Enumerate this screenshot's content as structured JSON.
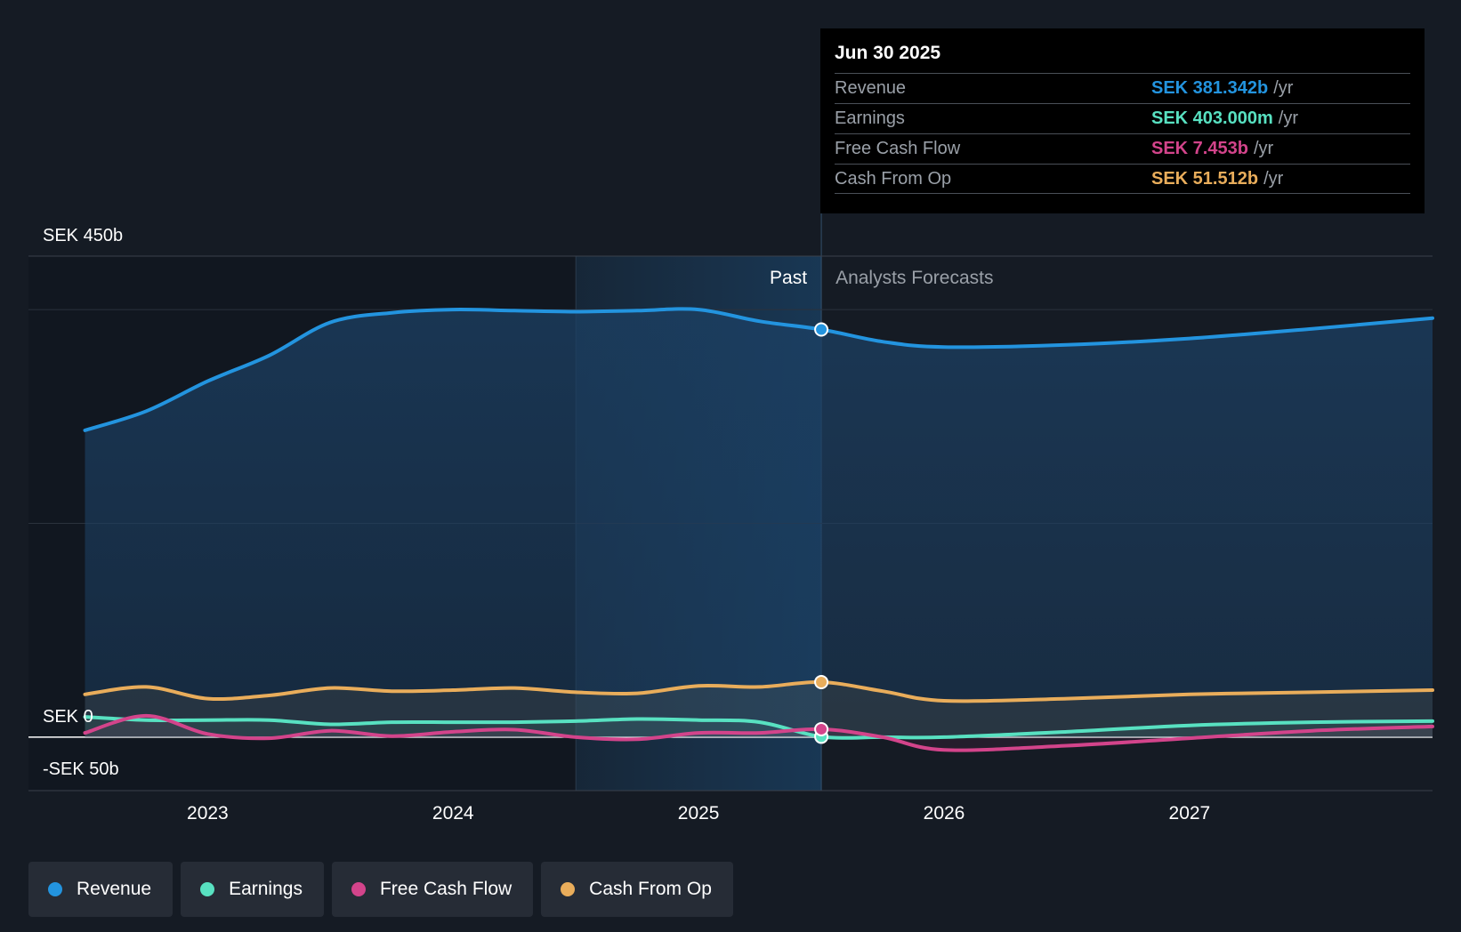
{
  "chart_data": {
    "type": "area",
    "x_unit": "year",
    "ylim": [
      -50,
      450
    ],
    "y_ticks": [
      {
        "value": 450,
        "label": "SEK 450b"
      },
      {
        "value": 0,
        "label": "SEK 0"
      },
      {
        "value": -50,
        "label": "-SEK 50b"
      }
    ],
    "x_ticks": [
      {
        "value": 2023,
        "label": "2023"
      },
      {
        "value": 2024,
        "label": "2024"
      },
      {
        "value": 2025,
        "label": "2025"
      },
      {
        "value": 2026,
        "label": "2026"
      },
      {
        "value": 2027,
        "label": "2027"
      }
    ],
    "xlim": [
      2022.27,
      2027.99
    ],
    "past_label": "Past",
    "forecast_label": "Analysts Forecasts",
    "past_start": 2024.5,
    "past_end": 2025.5,
    "grid": true,
    "legend_position": "bottom",
    "series": [
      {
        "name": "Revenue",
        "color": "#2394df",
        "points": [
          [
            2022.5,
            287
          ],
          [
            2022.75,
            305
          ],
          [
            2023.0,
            333
          ],
          [
            2023.25,
            357
          ],
          [
            2023.5,
            388
          ],
          [
            2023.75,
            397
          ],
          [
            2024.0,
            400
          ],
          [
            2024.25,
            399
          ],
          [
            2024.5,
            398
          ],
          [
            2024.75,
            399
          ],
          [
            2025.0,
            400
          ],
          [
            2025.25,
            389
          ],
          [
            2025.5,
            381.342
          ],
          [
            2025.75,
            370
          ],
          [
            2026.0,
            365
          ],
          [
            2026.5,
            367
          ],
          [
            2027.0,
            373
          ],
          [
            2027.5,
            382
          ],
          [
            2027.99,
            392
          ]
        ],
        "forecast": true
      },
      {
        "name": "Earnings",
        "color": "#58e1c1",
        "points": [
          [
            2022.5,
            19
          ],
          [
            2022.75,
            16
          ],
          [
            2023.0,
            16
          ],
          [
            2023.25,
            16
          ],
          [
            2023.5,
            12
          ],
          [
            2023.75,
            14
          ],
          [
            2024.0,
            14
          ],
          [
            2024.25,
            14
          ],
          [
            2024.5,
            15
          ],
          [
            2024.75,
            17
          ],
          [
            2025.0,
            16
          ],
          [
            2025.25,
            14
          ],
          [
            2025.5,
            0.403
          ],
          [
            2025.75,
            0
          ],
          [
            2026.0,
            0
          ],
          [
            2026.5,
            5
          ],
          [
            2027.0,
            11
          ],
          [
            2027.5,
            14
          ],
          [
            2027.99,
            15
          ]
        ],
        "forecast": true
      },
      {
        "name": "Free Cash Flow",
        "color": "#d3448b",
        "points": [
          [
            2022.5,
            4
          ],
          [
            2022.75,
            20
          ],
          [
            2023.0,
            3
          ],
          [
            2023.25,
            -1
          ],
          [
            2023.5,
            6
          ],
          [
            2023.75,
            1
          ],
          [
            2024.0,
            5
          ],
          [
            2024.25,
            7
          ],
          [
            2024.5,
            0
          ],
          [
            2024.75,
            -2
          ],
          [
            2025.0,
            4
          ],
          [
            2025.25,
            4
          ],
          [
            2025.5,
            7.453
          ],
          [
            2025.75,
            0
          ],
          [
            2026.0,
            -12
          ],
          [
            2026.5,
            -8
          ],
          [
            2027.0,
            -1
          ],
          [
            2027.5,
            6
          ],
          [
            2027.99,
            10
          ]
        ],
        "forecast": true
      },
      {
        "name": "Cash From Op",
        "color": "#e9ad5b",
        "points": [
          [
            2022.5,
            40
          ],
          [
            2022.75,
            47
          ],
          [
            2023.0,
            36
          ],
          [
            2023.25,
            39
          ],
          [
            2023.5,
            46
          ],
          [
            2023.75,
            43
          ],
          [
            2024.0,
            44
          ],
          [
            2024.25,
            46
          ],
          [
            2024.5,
            42
          ],
          [
            2024.75,
            41
          ],
          [
            2025.0,
            48
          ],
          [
            2025.25,
            47
          ],
          [
            2025.5,
            51.512
          ],
          [
            2025.75,
            43
          ],
          [
            2026.0,
            34
          ],
          [
            2026.5,
            36
          ],
          [
            2027.0,
            40
          ],
          [
            2027.5,
            42
          ],
          [
            2027.99,
            44
          ]
        ],
        "forecast": true
      }
    ],
    "highlight_x": 2025.5
  },
  "tooltip": {
    "date": "Jun 30 2025",
    "rows": [
      {
        "name": "Revenue",
        "value": "SEK 381.342b",
        "unit": "/yr",
        "color": "#2394df"
      },
      {
        "name": "Earnings",
        "value": "SEK 403.000m",
        "unit": "/yr",
        "color": "#58e1c1"
      },
      {
        "name": "Free Cash Flow",
        "value": "SEK 7.453b",
        "unit": "/yr",
        "color": "#d3448b"
      },
      {
        "name": "Cash From Op",
        "value": "SEK 51.512b",
        "unit": "/yr",
        "color": "#e9ad5b"
      }
    ]
  },
  "legend": [
    {
      "label": "Revenue",
      "color": "#2394df"
    },
    {
      "label": "Earnings",
      "color": "#58e1c1"
    },
    {
      "label": "Free Cash Flow",
      "color": "#d3448b"
    },
    {
      "label": "Cash From Op",
      "color": "#e9ad5b"
    }
  ]
}
